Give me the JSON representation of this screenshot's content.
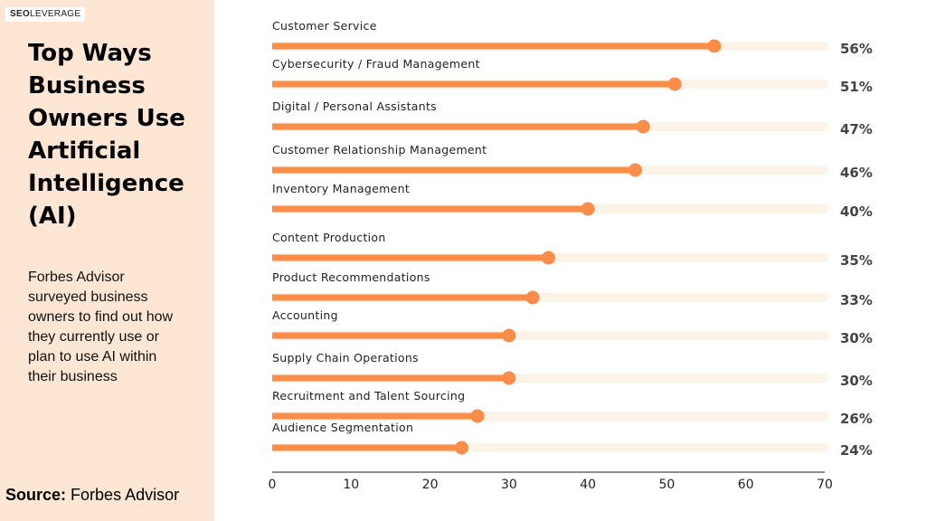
{
  "brand": {
    "logo_bold": "SEO",
    "logo_rest": "LEVERAGE"
  },
  "sidebar": {
    "title": "Top Ways Business Owners Use Artificial Intelligence (AI)",
    "description": "Forbes Advisor surveyed business owners to find out how they currently use or plan to use AI within their business",
    "source_label": "Source:",
    "source_name": "Forbes Advisor"
  },
  "colors": {
    "bar": "#fb8c4a",
    "track": "#faf3e6",
    "panel": "#fde6d4"
  },
  "chart_data": {
    "type": "bar",
    "orientation": "horizontal",
    "categories": [
      "Customer Service",
      "Cybersecurity / Fraud Management",
      "Digital / Personal Assistants",
      "Customer Relationship Management",
      "Inventory Management",
      "Content Production",
      "Product Recommendations",
      "Accounting",
      "Supply Chain Operations",
      "Recruitment and Talent Sourcing",
      "Audience Segmentation"
    ],
    "values": [
      56,
      51,
      47,
      46,
      40,
      35,
      33,
      30,
      30,
      26,
      24
    ],
    "value_labels": [
      "56%",
      "51%",
      "47%",
      "46%",
      "40%",
      "35%",
      "33%",
      "30%",
      "30%",
      "26%",
      "24%"
    ],
    "xlim": [
      0,
      70
    ],
    "xticks": [
      0,
      10,
      20,
      30,
      40,
      50,
      60,
      70
    ],
    "grid": false,
    "legend": "none"
  }
}
